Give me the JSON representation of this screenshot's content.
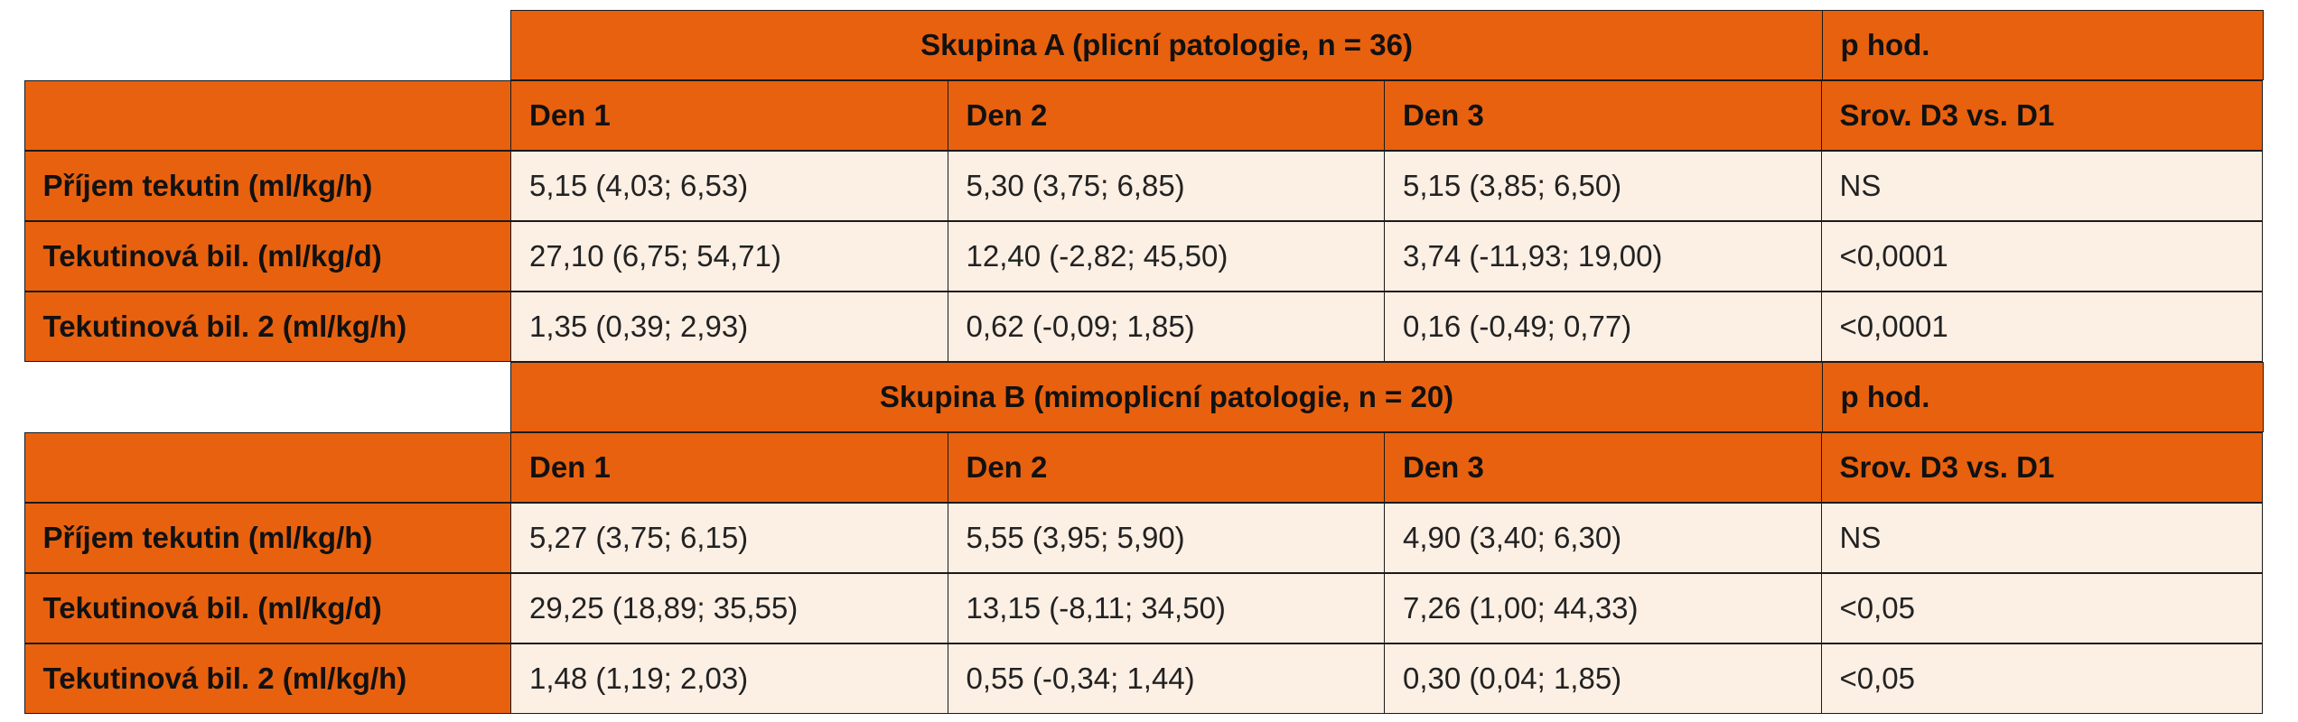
{
  "groups": [
    {
      "title": "Skupina A (plicní patologie, n = 36)",
      "p_header": "p hod.",
      "columns": [
        "Den 1",
        "Den 2",
        "Den 3",
        "Srov. D3 vs. D1"
      ],
      "rows": [
        {
          "label": "Příjem tekutin (ml/kg/h)",
          "d1": "5,15 (4,03; 6,53)",
          "d2": "5,30 (3,75; 6,85)",
          "d3": "5,15 (3,85; 6,50)",
          "p": "NS"
        },
        {
          "label": "Tekutinová bil. (ml/kg/d)",
          "d1": "27,10 (6,75; 54,71)",
          "d2": "12,40 (-2,82; 45,50)",
          "d3": "3,74 (-11,93; 19,00)",
          "p": "<0,0001"
        },
        {
          "label": "Tekutinová bil. 2 (ml/kg/h)",
          "d1": "1,35 (0,39; 2,93)",
          "d2": "0,62 (-0,09; 1,85)",
          "d3": "0,16 (-0,49; 0,77)",
          "p": "<0,0001"
        }
      ]
    },
    {
      "title": "Skupina B (mimoplicní patologie, n = 20)",
      "p_header": "p hod.",
      "columns": [
        "Den 1",
        "Den 2",
        "Den 3",
        "Srov. D3 vs. D1"
      ],
      "rows": [
        {
          "label": "Příjem tekutin (ml/kg/h)",
          "d1": "5,27 (3,75; 6,15)",
          "d2": "5,55 (3,95; 5,90)",
          "d3": "4,90 (3,40; 6,30)",
          "p": "NS"
        },
        {
          "label": "Tekutinová bil. (ml/kg/d)",
          "d1": "29,25 (18,89; 35,55)",
          "d2": "13,15 (-8,11; 34,50)",
          "d3": "7,26 (1,00; 44,33)",
          "p": "<0,05"
        },
        {
          "label": "Tekutinová bil. 2 (ml/kg/h)",
          "d1": "1,48 (1,19; 2,03)",
          "d2": "0,55 (-0,34; 1,44)",
          "d3": "0,30 (0,04; 1,85)",
          "p": "<0,05"
        }
      ]
    }
  ],
  "colors": {
    "header": "#e8610f",
    "value_cell": "#fcefe4",
    "border": "#1a1a1a"
  }
}
